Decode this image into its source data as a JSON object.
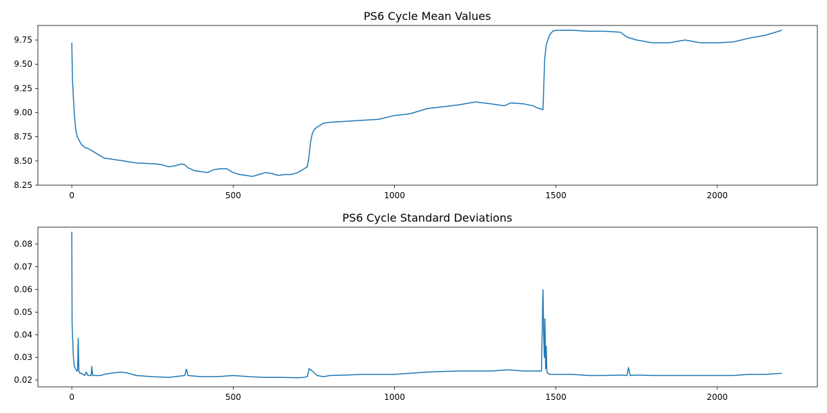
{
  "chart_data": [
    {
      "type": "line",
      "title": "PS6 Cycle Mean Values",
      "xlabel": "",
      "ylabel": "",
      "xlim": [
        -105,
        2310
      ],
      "ylim": [
        8.25,
        9.9
      ],
      "xticks": [
        0,
        500,
        1000,
        1500,
        2000
      ],
      "xtick_labels": [
        "0",
        "500",
        "1000",
        "1500",
        "2000"
      ],
      "yticks": [
        8.25,
        8.5,
        8.75,
        9.0,
        9.25,
        9.5,
        9.75
      ],
      "ytick_labels": [
        "8.25",
        "8.50",
        "8.75",
        "9.00",
        "9.25",
        "9.50",
        "9.75"
      ],
      "grid": false,
      "series": [
        {
          "color": "#1f77b4",
          "x": [
            0,
            2,
            5,
            8,
            12,
            16,
            20,
            25,
            30,
            40,
            50,
            60,
            70,
            80,
            90,
            100,
            120,
            140,
            160,
            180,
            200,
            230,
            260,
            280,
            300,
            320,
            340,
            350,
            360,
            380,
            400,
            420,
            440,
            460,
            480,
            500,
            520,
            540,
            560,
            580,
            600,
            620,
            640,
            660,
            680,
            700,
            710,
            720,
            730,
            735,
            740,
            745,
            750,
            760,
            780,
            800,
            850,
            900,
            950,
            1000,
            1030,
            1050,
            1100,
            1150,
            1200,
            1250,
            1300,
            1340,
            1360,
            1400,
            1430,
            1440,
            1450,
            1460,
            1465,
            1470,
            1480,
            1490,
            1500,
            1550,
            1600,
            1650,
            1700,
            1720,
            1750,
            1800,
            1850,
            1900,
            1950,
            2000,
            2050,
            2100,
            2150,
            2200
          ],
          "values": [
            9.72,
            9.35,
            9.15,
            8.98,
            8.83,
            8.76,
            8.73,
            8.7,
            8.67,
            8.64,
            8.63,
            8.61,
            8.59,
            8.57,
            8.55,
            8.53,
            8.52,
            8.51,
            8.5,
            8.49,
            8.48,
            8.475,
            8.47,
            8.46,
            8.44,
            8.45,
            8.47,
            8.46,
            8.43,
            8.4,
            8.39,
            8.38,
            8.41,
            8.42,
            8.42,
            8.38,
            8.36,
            8.35,
            8.34,
            8.36,
            8.38,
            8.37,
            8.35,
            8.36,
            8.36,
            8.38,
            8.4,
            8.42,
            8.44,
            8.55,
            8.7,
            8.78,
            8.82,
            8.85,
            8.89,
            8.9,
            8.91,
            8.92,
            8.93,
            8.97,
            8.98,
            8.99,
            9.04,
            9.06,
            9.08,
            9.11,
            9.09,
            9.07,
            9.1,
            9.09,
            9.07,
            9.05,
            9.04,
            9.03,
            9.55,
            9.7,
            9.8,
            9.84,
            9.85,
            9.85,
            9.84,
            9.84,
            9.83,
            9.78,
            9.75,
            9.72,
            9.72,
            9.75,
            9.72,
            9.72,
            9.73,
            9.77,
            9.8,
            9.85
          ]
        }
      ]
    },
    {
      "type": "line",
      "title": "PS6 Cycle Standard Deviations",
      "xlabel": "",
      "ylabel": "",
      "xlim": [
        -105,
        2310
      ],
      "ylim": [
        0.017,
        0.0875
      ],
      "xticks": [
        0,
        500,
        1000,
        1500,
        2000
      ],
      "xtick_labels": [
        "0",
        "500",
        "1000",
        "1500",
        "2000"
      ],
      "yticks": [
        0.02,
        0.03,
        0.04,
        0.05,
        0.06,
        0.07,
        0.08
      ],
      "ytick_labels": [
        "0.02",
        "0.03",
        "0.04",
        "0.05",
        "0.06",
        "0.07",
        "0.08"
      ],
      "grid": false,
      "series": [
        {
          "color": "#1f77b4",
          "x": [
            0,
            1,
            3,
            5,
            8,
            12,
            15,
            18,
            20,
            22,
            25,
            30,
            40,
            45,
            50,
            55,
            60,
            62,
            65,
            70,
            80,
            90,
            100,
            120,
            150,
            170,
            200,
            250,
            300,
            350,
            355,
            360,
            400,
            450,
            500,
            550,
            600,
            650,
            700,
            720,
            730,
            735,
            745,
            760,
            780,
            800,
            850,
            900,
            950,
            1000,
            1050,
            1100,
            1150,
            1200,
            1250,
            1300,
            1350,
            1400,
            1440,
            1455,
            1460,
            1462,
            1464,
            1466,
            1468,
            1470,
            1472,
            1474,
            1476,
            1480,
            1500,
            1550,
            1600,
            1650,
            1700,
            1720,
            1725,
            1730,
            1750,
            1800,
            1850,
            1900,
            1950,
            2000,
            2050,
            2100,
            2150,
            2200
          ],
          "values": [
            0.0855,
            0.045,
            0.037,
            0.03,
            0.026,
            0.025,
            0.024,
            0.024,
            0.0385,
            0.024,
            0.023,
            0.023,
            0.022,
            0.0235,
            0.022,
            0.022,
            0.022,
            0.026,
            0.022,
            0.022,
            0.022,
            0.022,
            0.0225,
            0.023,
            0.0235,
            0.0232,
            0.022,
            0.0215,
            0.0212,
            0.022,
            0.0248,
            0.022,
            0.0215,
            0.0215,
            0.022,
            0.0215,
            0.0212,
            0.0212,
            0.021,
            0.0212,
            0.0215,
            0.025,
            0.024,
            0.022,
            0.0215,
            0.022,
            0.0222,
            0.0225,
            0.0225,
            0.0225,
            0.023,
            0.0235,
            0.0238,
            0.024,
            0.024,
            0.024,
            0.0245,
            0.024,
            0.024,
            0.024,
            0.0598,
            0.04,
            0.03,
            0.047,
            0.025,
            0.035,
            0.024,
            0.023,
            0.023,
            0.0225,
            0.0225,
            0.0225,
            0.022,
            0.022,
            0.0222,
            0.022,
            0.0255,
            0.022,
            0.0222,
            0.022,
            0.022,
            0.022,
            0.022,
            0.022,
            0.022,
            0.0225,
            0.0225,
            0.023
          ]
        }
      ]
    }
  ]
}
